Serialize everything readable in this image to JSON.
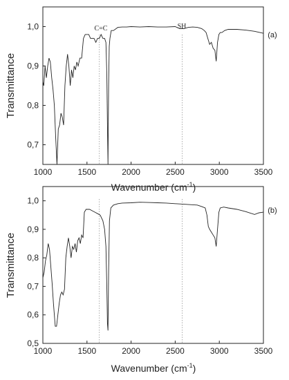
{
  "chart_data": [
    {
      "type": "line",
      "panel_label": "(a)",
      "xlabel_base": "Wavenumber (cm",
      "xlabel_sup": "-1",
      "xlabel_close": ")",
      "ylabel": "Transmittance",
      "xlim": [
        1000,
        3500
      ],
      "ylim": [
        0.65,
        1.05
      ],
      "xticks": [
        1000,
        1500,
        2000,
        2500,
        3000,
        3500
      ],
      "yticks": [
        0.7,
        0.8,
        0.9,
        1.0
      ],
      "ytick_labels": [
        "0,7",
        "0,8",
        "0,9",
        "1,0"
      ],
      "grid": false,
      "annotations": [
        {
          "text": "C=C",
          "x": 1640
        },
        {
          "text": "SH",
          "x": 2580
        }
      ],
      "series": [
        {
          "x": [
            1000,
            1010,
            1025,
            1040,
            1055,
            1070,
            1085,
            1100,
            1115,
            1130,
            1145,
            1160,
            1175,
            1190,
            1205,
            1220,
            1235,
            1250,
            1265,
            1280,
            1295,
            1310,
            1325,
            1340,
            1355,
            1370,
            1385,
            1400,
            1420,
            1440,
            1460,
            1480,
            1500,
            1520,
            1540,
            1560,
            1580,
            1600,
            1620,
            1640,
            1660,
            1680,
            1700,
            1715,
            1725,
            1732,
            1738,
            1745,
            1752,
            1760,
            1775,
            1800,
            1850,
            1900,
            1950,
            2000,
            2100,
            2200,
            2300,
            2400,
            2500,
            2550,
            2600,
            2650,
            2700,
            2750,
            2800,
            2830,
            2850,
            2870,
            2890,
            2910,
            2930,
            2950,
            2965,
            2980,
            2995,
            3010,
            3030,
            3060,
            3100,
            3200,
            3300,
            3400,
            3500
          ],
          "y": [
            0.86,
            0.85,
            0.9,
            0.87,
            0.9,
            0.92,
            0.91,
            0.87,
            0.84,
            0.8,
            0.72,
            0.65,
            0.74,
            0.75,
            0.78,
            0.77,
            0.75,
            0.85,
            0.9,
            0.93,
            0.9,
            0.85,
            0.89,
            0.87,
            0.9,
            0.89,
            0.91,
            0.9,
            0.92,
            0.92,
            0.97,
            0.98,
            0.98,
            0.98,
            0.97,
            0.97,
            0.97,
            0.96,
            0.97,
            0.97,
            0.98,
            0.97,
            0.97,
            0.96,
            0.88,
            0.75,
            0.65,
            0.85,
            0.95,
            0.97,
            0.99,
            0.99,
            0.998,
            0.999,
            0.999,
            1.0,
            0.999,
            1.0,
            0.999,
            0.999,
            1.0,
            0.995,
            0.995,
            0.998,
            0.999,
            0.998,
            0.995,
            0.99,
            0.985,
            0.97,
            0.955,
            0.96,
            0.945,
            0.94,
            0.912,
            0.96,
            0.98,
            0.985,
            0.985,
            0.99,
            0.993,
            0.993,
            0.991,
            0.988,
            0.983
          ]
        }
      ]
    },
    {
      "type": "line",
      "panel_label": "(b)",
      "xlabel_base": "Wavenumber (cm",
      "xlabel_sup": "-1",
      "xlabel_close": ")",
      "ylabel": "Transmittance",
      "xlim": [
        1000,
        3500
      ],
      "ylim": [
        0.5,
        1.05
      ],
      "xticks": [
        1000,
        1500,
        2000,
        2500,
        3000,
        3500
      ],
      "yticks": [
        0.5,
        0.6,
        0.7,
        0.8,
        0.9,
        1.0
      ],
      "ytick_labels": [
        "0,5",
        "0,6",
        "0,7",
        "0,8",
        "0,9",
        "1,0"
      ],
      "grid": false,
      "annotations": [],
      "series": [
        {
          "x": [
            1000,
            1015,
            1030,
            1045,
            1060,
            1075,
            1090,
            1105,
            1120,
            1140,
            1155,
            1170,
            1185,
            1200,
            1215,
            1230,
            1245,
            1260,
            1275,
            1290,
            1305,
            1320,
            1335,
            1350,
            1365,
            1380,
            1395,
            1410,
            1425,
            1440,
            1455,
            1470,
            1490,
            1510,
            1530,
            1560,
            1590,
            1620,
            1650,
            1680,
            1700,
            1715,
            1725,
            1732,
            1738,
            1745,
            1755,
            1770,
            1800,
            1850,
            1900,
            2000,
            2100,
            2200,
            2300,
            2400,
            2500,
            2600,
            2700,
            2750,
            2800,
            2840,
            2860,
            2875,
            2890,
            2910,
            2930,
            2950,
            2965,
            2980,
            2995,
            3010,
            3050,
            3100,
            3200,
            3300,
            3400,
            3450,
            3500
          ],
          "y": [
            0.73,
            0.75,
            0.79,
            0.81,
            0.85,
            0.83,
            0.77,
            0.71,
            0.64,
            0.56,
            0.56,
            0.6,
            0.64,
            0.67,
            0.68,
            0.67,
            0.69,
            0.8,
            0.84,
            0.87,
            0.84,
            0.8,
            0.84,
            0.83,
            0.85,
            0.82,
            0.86,
            0.87,
            0.85,
            0.88,
            0.87,
            0.96,
            0.97,
            0.97,
            0.97,
            0.965,
            0.96,
            0.955,
            0.95,
            0.93,
            0.9,
            0.84,
            0.7,
            0.57,
            0.545,
            0.75,
            0.93,
            0.975,
            0.985,
            0.99,
            0.992,
            0.993,
            0.995,
            0.994,
            0.993,
            0.992,
            0.99,
            0.988,
            0.986,
            0.985,
            0.98,
            0.975,
            0.95,
            0.91,
            0.9,
            0.89,
            0.88,
            0.87,
            0.84,
            0.9,
            0.96,
            0.975,
            0.978,
            0.975,
            0.97,
            0.962,
            0.952,
            0.958,
            0.96
          ]
        }
      ]
    }
  ]
}
